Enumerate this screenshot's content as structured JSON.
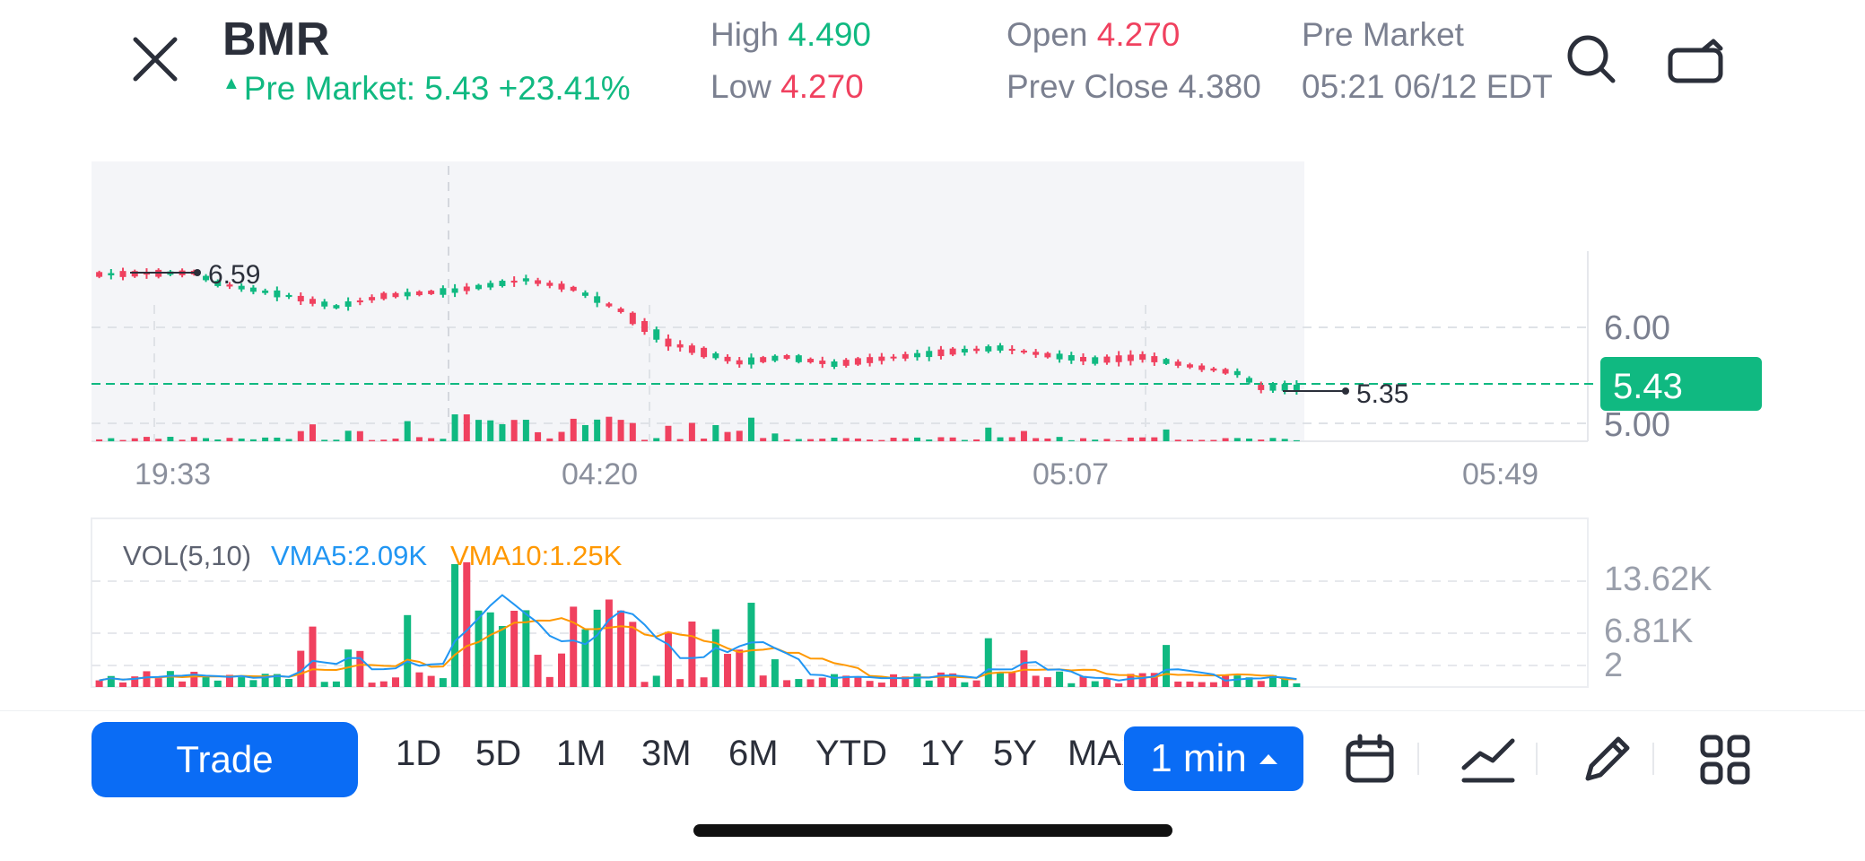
{
  "header": {
    "ticker": "BMR",
    "pre_market_line": "Pre Market: 5.43 +23.41%",
    "high_label": "High",
    "high_value": "4.490",
    "low_label": "Low",
    "low_value": "4.270",
    "open_label": "Open",
    "open_value": "4.270",
    "prev_close_label": "Prev Close",
    "prev_close_value": "4.380",
    "session_label": "Pre Market",
    "session_time": "05:21 06/12 EDT",
    "icons": [
      "close-icon",
      "search-icon",
      "share-icon"
    ]
  },
  "price_chart": {
    "y_ticks": [
      "6.00",
      "5.00"
    ],
    "last_price": "5.43",
    "high_marker": "6.59",
    "low_marker": "5.35",
    "x_ticks": [
      "19:33",
      "04:20",
      "05:07",
      "05:49"
    ]
  },
  "volume_chart": {
    "title": "VOL(5,10)",
    "vma5": "VMA5:2.09K",
    "vma10": "VMA10:1.25K",
    "y_ticks": [
      "13.62K",
      "6.81K",
      "2"
    ]
  },
  "colors": {
    "up": "#10b981",
    "down": "#f0415f",
    "accent": "#0a6cf5",
    "vma5": "#2196f3",
    "vma10": "#ff9800"
  },
  "toolbar": {
    "trade_label": "Trade",
    "periods": [
      "1D",
      "5D",
      "1M",
      "3M",
      "6M",
      "YTD",
      "1Y",
      "5Y"
    ],
    "periods_clipped": "MAX",
    "interval_label": "1 min",
    "icons": [
      "calendar-icon",
      "indicator-icon",
      "draw-icon",
      "grid-menu-icon"
    ]
  }
}
